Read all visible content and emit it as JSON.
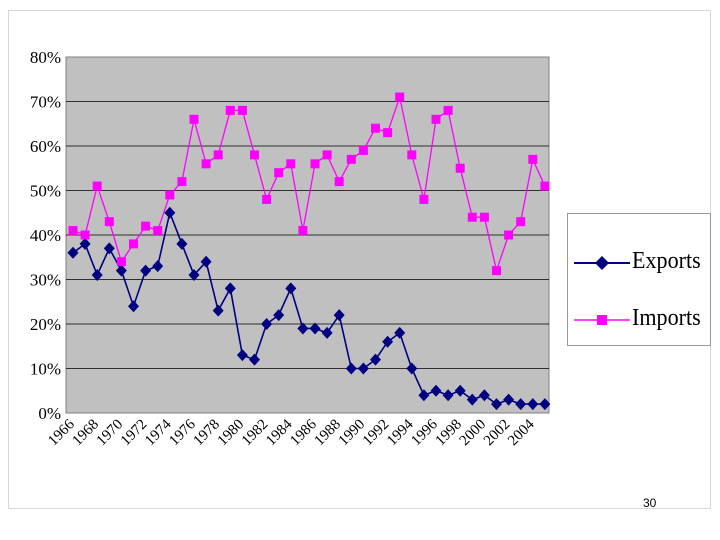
{
  "page_number": "30",
  "chart_data": {
    "type": "line",
    "title": "",
    "xlabel": "",
    "ylabel": "",
    "x": [
      1966,
      1967,
      1968,
      1969,
      1970,
      1971,
      1972,
      1973,
      1974,
      1975,
      1976,
      1977,
      1978,
      1979,
      1980,
      1981,
      1982,
      1983,
      1984,
      1985,
      1986,
      1987,
      1988,
      1989,
      1990,
      1991,
      1992,
      1993,
      1994,
      1995,
      1996,
      1997,
      1998,
      1999,
      2000,
      2001,
      2002,
      2003,
      2004,
      2005
    ],
    "x_tick_labels": [
      "1966",
      "1968",
      "1970",
      "1972",
      "1974",
      "1976",
      "1978",
      "1980",
      "1982",
      "1984",
      "1986",
      "1988",
      "1990",
      "1992",
      "1994",
      "1996",
      "1998",
      "2000",
      "2002",
      "2004"
    ],
    "y_tick_labels": [
      "0%",
      "10%",
      "20%",
      "30%",
      "40%",
      "50%",
      "60%",
      "70%",
      "80%"
    ],
    "ylim": [
      0,
      80
    ],
    "y_unit": "%",
    "grid": "horizontal",
    "plot_background": "#c0c0c0",
    "legend_position": "right",
    "series": [
      {
        "name": "Exports",
        "color": "#000080",
        "marker": "diamond",
        "values": [
          36,
          38,
          31,
          37,
          32,
          24,
          32,
          33,
          45,
          38,
          31,
          34,
          23,
          28,
          13,
          12,
          20,
          22,
          28,
          19,
          19,
          18,
          22,
          10,
          10,
          12,
          16,
          18,
          10,
          4,
          5,
          4,
          5,
          3,
          4,
          2,
          3,
          2,
          2,
          2
        ]
      },
      {
        "name": "Imports",
        "color": "#ff00ff",
        "marker": "square",
        "values": [
          41,
          40,
          51,
          43,
          34,
          38,
          42,
          41,
          49,
          52,
          66,
          56,
          58,
          68,
          68,
          58,
          48,
          54,
          56,
          41,
          56,
          58,
          52,
          57,
          59,
          64,
          63,
          71,
          58,
          48,
          66,
          68,
          55,
          44,
          44,
          32,
          40,
          43,
          57,
          51
        ]
      }
    ]
  }
}
